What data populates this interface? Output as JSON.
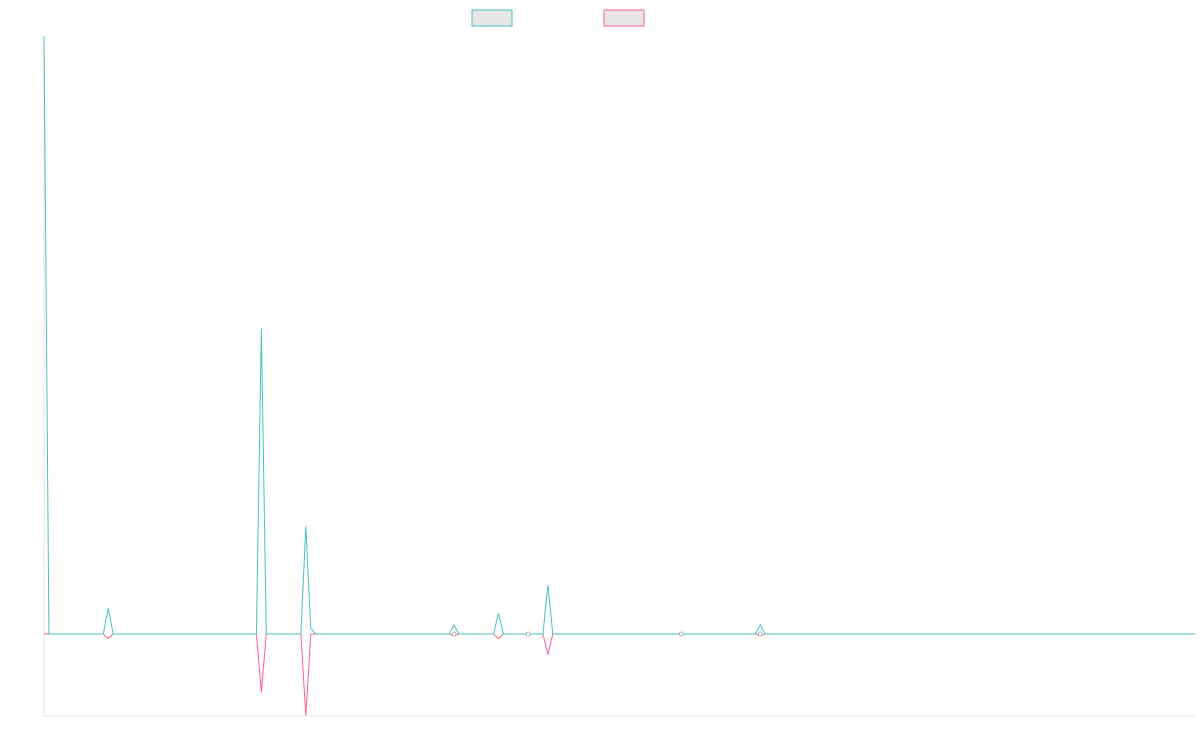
{
  "chart_data": {
    "type": "line",
    "title": "",
    "xlabel": "",
    "ylabel": "",
    "legend": {
      "placement": "top-center"
    },
    "grid": false,
    "x_count": 234,
    "ylim": [
      -0.14,
      1.0
    ],
    "colors": {
      "series_a": "#4bc0c0",
      "series_b": "#ff6384",
      "legend_fill": "#e6e6e6",
      "axis": "#e6e6e6"
    },
    "series": [
      {
        "key": "series_a",
        "name": "",
        "points": [
          [
            0,
            1.0
          ],
          [
            1,
            0.0
          ],
          [
            12,
            0.0
          ],
          [
            13,
            0.043
          ],
          [
            14,
            0.0
          ],
          [
            43,
            0.0
          ],
          [
            44,
            0.51
          ],
          [
            45,
            0.0
          ],
          [
            52,
            0.0
          ],
          [
            53,
            0.18
          ],
          [
            54,
            0.01
          ],
          [
            55,
            0.0
          ],
          [
            82,
            0.0
          ],
          [
            83,
            0.015
          ],
          [
            84,
            0.0
          ],
          [
            91,
            0.0
          ],
          [
            92,
            0.034
          ],
          [
            93,
            0.0
          ],
          [
            101,
            0.0
          ],
          [
            102,
            0.082
          ],
          [
            103,
            0.0
          ],
          [
            144,
            0.0
          ],
          [
            145,
            0.015
          ],
          [
            146,
            0.0
          ],
          [
            233,
            0.0
          ]
        ]
      },
      {
        "key": "series_b",
        "name": "",
        "points": [
          [
            0,
            0.0
          ],
          [
            12,
            0.0
          ],
          [
            13,
            -0.008
          ],
          [
            14,
            0.0
          ],
          [
            43,
            0.0
          ],
          [
            44,
            -0.1
          ],
          [
            45,
            0.0
          ],
          [
            52,
            0.0
          ],
          [
            53,
            -0.14
          ],
          [
            54,
            0.0
          ],
          [
            82,
            0.0
          ],
          [
            83,
            -0.003
          ],
          [
            84,
            0.0
          ],
          [
            91,
            0.0
          ],
          [
            92,
            -0.008
          ],
          [
            93,
            0.0
          ],
          [
            101,
            0.0
          ],
          [
            102,
            -0.035
          ],
          [
            103,
            0.0
          ],
          [
            144,
            0.0
          ],
          [
            145,
            -0.003
          ],
          [
            146,
            0.0
          ],
          [
            233,
            0.0
          ]
        ]
      }
    ],
    "markers": [
      [
        83,
        0.0
      ],
      [
        98,
        0.0
      ],
      [
        129,
        0.0
      ],
      [
        145,
        0.0
      ]
    ]
  }
}
